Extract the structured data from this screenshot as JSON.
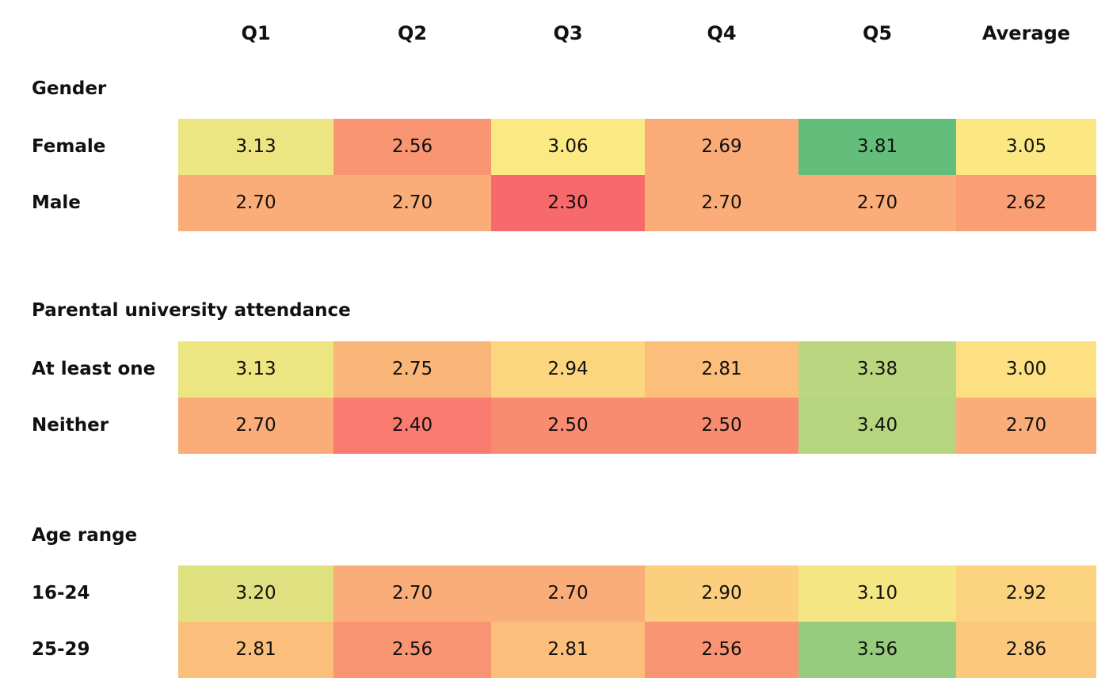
{
  "chart_data": {
    "type": "heatmap",
    "columns": [
      "Q1",
      "Q2",
      "Q3",
      "Q4",
      "Q5",
      "Average"
    ],
    "groups": [
      {
        "label": "Gender",
        "rows": [
          {
            "label": "Female",
            "values": [
              "3.13",
              "2.56",
              "3.06",
              "2.69",
              "3.81",
              "3.05"
            ]
          },
          {
            "label": "Male",
            "values": [
              "2.70",
              "2.70",
              "2.30",
              "2.70",
              "2.70",
              "2.62"
            ]
          }
        ]
      },
      {
        "label": "Parental university attendance",
        "rows": [
          {
            "label": "At least one",
            "values": [
              "3.13",
              "2.75",
              "2.94",
              "2.81",
              "3.38",
              "3.00"
            ]
          },
          {
            "label": "Neither",
            "values": [
              "2.70",
              "2.40",
              "2.50",
              "2.50",
              "3.40",
              "2.70"
            ]
          }
        ]
      },
      {
        "label": "Age range",
        "rows": [
          {
            "label": "16-24",
            "values": [
              "3.20",
              "2.70",
              "2.70",
              "2.90",
              "3.10",
              "2.92"
            ]
          },
          {
            "label": "25-29",
            "values": [
              "2.81",
              "2.56",
              "2.81",
              "2.56",
              "3.56",
              "2.86"
            ]
          }
        ]
      }
    ],
    "color_scale": {
      "min_value": 2.3,
      "max_value": 3.81,
      "low_color": "#f8696b",
      "mid_color": "#fce983",
      "high_color": "#63be7b"
    }
  }
}
